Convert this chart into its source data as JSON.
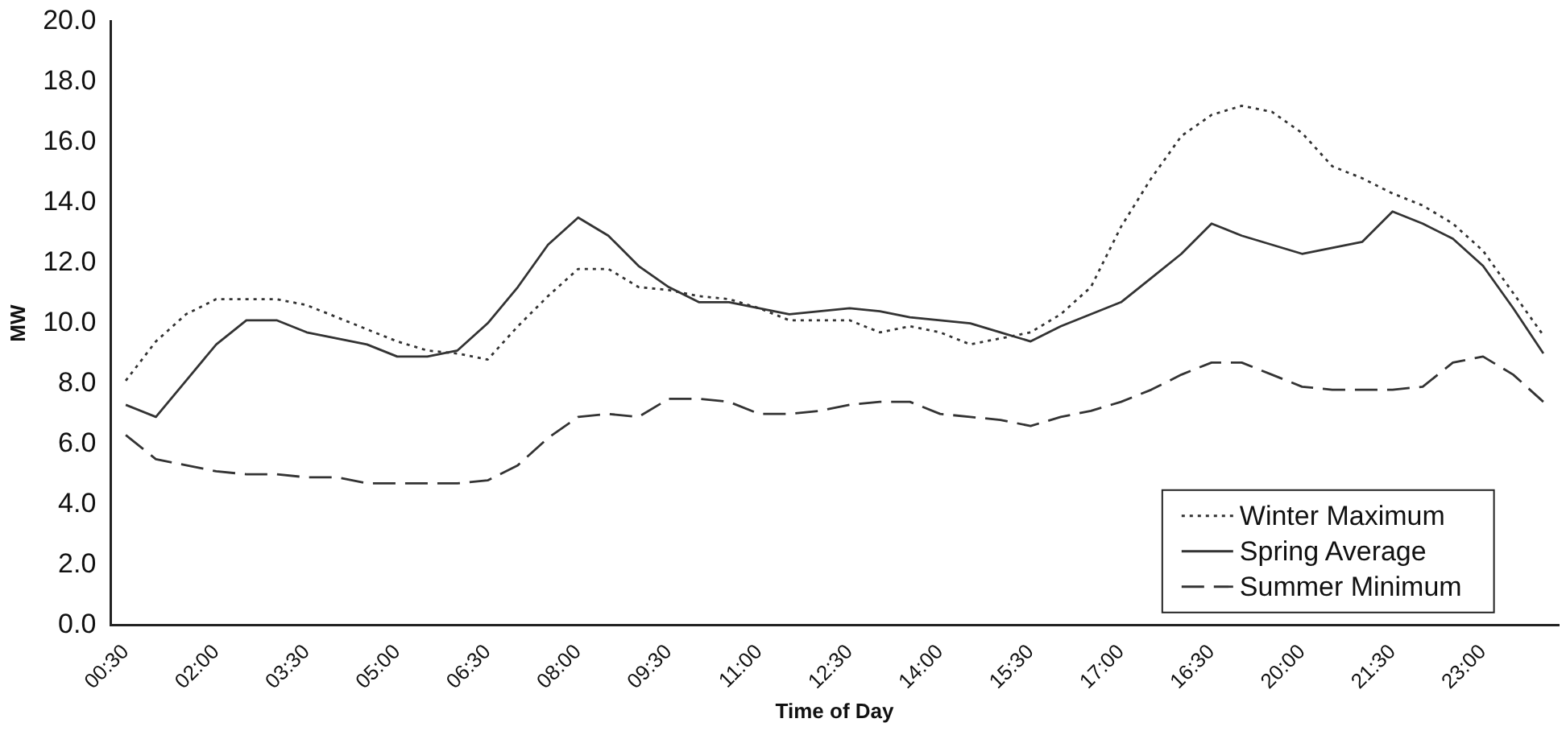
{
  "chart_data": {
    "type": "line",
    "xlabel": "Time of Day",
    "ylabel": "MW",
    "categories": [
      "00:30",
      null,
      null,
      "02:00",
      null,
      null,
      "03:30",
      null,
      null,
      "05:00",
      null,
      null,
      "06:30",
      null,
      null,
      "08:00",
      null,
      null,
      "09:30",
      null,
      null,
      "11:00",
      null,
      null,
      "12:30",
      null,
      null,
      "14:00",
      null,
      null,
      "15:30",
      null,
      null,
      "17:00",
      null,
      null,
      "16:30",
      null,
      null,
      "20:00",
      null,
      null,
      "21:30",
      null,
      null,
      "23:00",
      null,
      null
    ],
    "series": [
      {
        "name": "Winter Maximum",
        "color": "#333333",
        "line_style": "dotted",
        "values": [
          8.1,
          9.4,
          10.3,
          10.8,
          10.8,
          10.8,
          10.6,
          10.2,
          9.8,
          9.4,
          9.1,
          9.0,
          8.8,
          9.9,
          10.9,
          11.8,
          11.8,
          11.2,
          11.1,
          10.9,
          10.8,
          10.5,
          10.1,
          10.1,
          10.1,
          9.7,
          9.9,
          9.7,
          9.3,
          9.5,
          9.7,
          10.3,
          11.2,
          13.2,
          14.8,
          16.2,
          16.9,
          17.2,
          17.0,
          16.3,
          15.2,
          14.8,
          14.3,
          13.9,
          13.3,
          12.4,
          11.0,
          9.6
        ]
      },
      {
        "name": "Spring Average",
        "color": "#333333",
        "line_style": "solid",
        "values": [
          7.3,
          6.9,
          8.1,
          9.3,
          10.1,
          10.1,
          9.7,
          9.5,
          9.3,
          8.9,
          8.9,
          9.1,
          10.0,
          11.2,
          12.6,
          13.5,
          12.9,
          11.9,
          11.2,
          10.7,
          10.7,
          10.5,
          10.3,
          10.4,
          10.5,
          10.4,
          10.2,
          10.1,
          10.0,
          9.7,
          9.4,
          9.9,
          10.3,
          10.7,
          11.5,
          12.3,
          13.3,
          12.9,
          12.6,
          12.3,
          12.5,
          12.7,
          13.7,
          13.3,
          12.8,
          11.9,
          10.5,
          9.0
        ]
      },
      {
        "name": "Summer Minimum",
        "color": "#333333",
        "line_style": "dashed",
        "values": [
          6.3,
          5.5,
          5.3,
          5.1,
          5.0,
          5.0,
          4.9,
          4.9,
          4.7,
          4.7,
          4.7,
          4.7,
          4.8,
          5.3,
          6.2,
          6.9,
          7.0,
          6.9,
          7.5,
          7.5,
          7.4,
          7.0,
          7.0,
          7.1,
          7.3,
          7.4,
          7.4,
          7.0,
          6.9,
          6.8,
          6.6,
          6.9,
          7.1,
          7.4,
          7.8,
          8.3,
          8.7,
          8.7,
          8.3,
          7.9,
          7.8,
          7.8,
          7.8,
          7.9,
          8.7,
          8.9,
          8.3,
          7.4
        ]
      }
    ],
    "ylim": [
      0,
      20
    ],
    "yticks": [
      {
        "value": 0,
        "label": "0.0"
      },
      {
        "value": 2,
        "label": "2.0"
      },
      {
        "value": 4,
        "label": "4.0"
      },
      {
        "value": 6,
        "label": "6.0"
      },
      {
        "value": 8,
        "label": "8.0"
      },
      {
        "value": 10,
        "label": "10.0"
      },
      {
        "value": 12,
        "label": "12.0"
      },
      {
        "value": 14,
        "label": "14.0"
      },
      {
        "value": 16,
        "label": "16.0"
      },
      {
        "value": 18,
        "label": "18.0"
      },
      {
        "value": 20,
        "label": "20.0"
      }
    ],
    "grid": false,
    "marker": "none",
    "legend": "bottom right"
  }
}
